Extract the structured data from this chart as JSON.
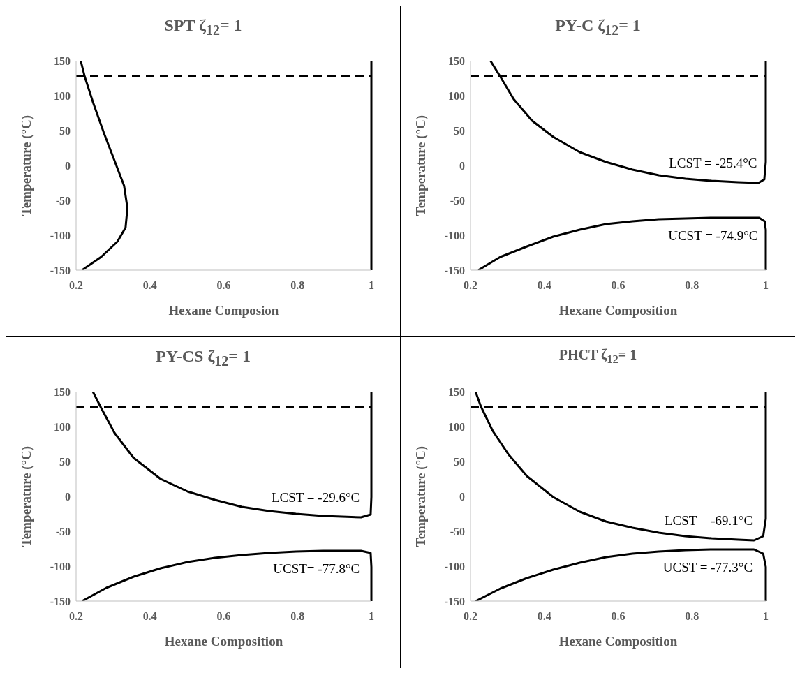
{
  "chart_data": [
    {
      "type": "line",
      "title": "SPT ζ$_{12}$= 1",
      "xlabel": "Hexane Composion",
      "ylabel": "Temperature (°C)",
      "xlim": [
        0.2,
        1
      ],
      "ylim": [
        -150,
        150
      ],
      "xticks": [
        0.2,
        0.4,
        0.6,
        0.8,
        1
      ],
      "yticks": [
        -150,
        -100,
        -50,
        0,
        50,
        100,
        150
      ],
      "series": [
        {
          "color": "#000000",
          "x": [
            0.2125,
            0.2235,
            0.2455,
            0.275,
            0.304,
            0.33,
            0.339,
            0.334,
            0.312,
            0.268,
            0.216
          ],
          "values": [
            150,
            127,
            91,
            47,
            7,
            -29,
            -61,
            -89,
            -109,
            -131,
            -150
          ]
        },
        {
          "color": "#000000",
          "x": [
            1,
            1,
            1,
            1,
            1
          ],
          "values": [
            -150,
            -100,
            0,
            100,
            150
          ]
        }
      ],
      "ref_lines": [
        {
          "axis": "y",
          "value": 128,
          "color": "#000000",
          "line_style": "dashed"
        }
      ]
    },
    {
      "type": "line",
      "title": "PY-C ζ$_{12}$= 1",
      "xlabel": "Hexane Composition",
      "ylabel": "Temperature (°C)",
      "xlim": [
        0.2,
        1
      ],
      "ylim": [
        -150,
        150
      ],
      "xticks": [
        0.2,
        0.4,
        0.6,
        0.8,
        1
      ],
      "yticks": [
        -150,
        -100,
        -50,
        0,
        50,
        100,
        150
      ],
      "series": [
        {
          "color": "#000000",
          "x": [
            0.254,
            0.281,
            0.317,
            0.367,
            0.424,
            0.496,
            0.567,
            0.639,
            0.71,
            0.782,
            0.853,
            0.925,
            0.98,
            0.996,
            1,
            1
          ],
          "values": [
            150,
            127,
            95,
            64,
            41,
            19,
            5,
            -6,
            -14,
            -19,
            -22,
            -24,
            -25,
            -20,
            5,
            150
          ]
        },
        {
          "color": "#000000",
          "x": [
            0.221,
            0.281,
            0.353,
            0.424,
            0.496,
            0.567,
            0.639,
            0.71,
            0.782,
            0.853,
            0.982,
            0.997,
            1,
            1
          ],
          "values": [
            -150,
            -131,
            -116,
            -102,
            -92,
            -84,
            -80,
            -77,
            -76,
            -75,
            -75,
            -80,
            -92,
            -150
          ]
        }
      ],
      "ref_lines": [
        {
          "axis": "y",
          "value": 128,
          "color": "#000000",
          "line_style": "dashed"
        }
      ],
      "annotations": [
        {
          "text": "LCST = -25.4°C",
          "x": 0.98,
          "y": -25
        },
        {
          "text": "UCST = -74.9°C",
          "x": 0.982,
          "y": -75
        }
      ]
    },
    {
      "type": "line",
      "title": "PY-CS ζ$_{12}$= 1",
      "xlabel": "Hexane Composition",
      "ylabel": "Temperature (°C)",
      "xlim": [
        0.2,
        1
      ],
      "ylim": [
        -150,
        150
      ],
      "xticks": [
        0.2,
        0.4,
        0.6,
        0.8,
        1
      ],
      "yticks": [
        -150,
        -100,
        -50,
        0,
        50,
        100,
        150
      ],
      "series": [
        {
          "color": "#000000",
          "x": [
            0.2455,
            0.2675,
            0.304,
            0.356,
            0.429,
            0.502,
            0.576,
            0.649,
            0.723,
            0.796,
            0.869,
            0.972,
            0.998,
            1,
            1
          ],
          "values": [
            150,
            127,
            91,
            55,
            25,
            7,
            -5,
            -15,
            -21,
            -25,
            -28,
            -30,
            -26,
            -1,
            150
          ]
        },
        {
          "color": "#000000",
          "x": [
            0.216,
            0.282,
            0.356,
            0.429,
            0.502,
            0.576,
            0.649,
            0.723,
            0.796,
            0.869,
            0.972,
            0.998,
            1,
            1
          ],
          "values": [
            -150,
            -131,
            -115,
            -103,
            -94,
            -88,
            -84,
            -81,
            -79,
            -78,
            -78,
            -81,
            -101,
            -150
          ]
        }
      ],
      "ref_lines": [
        {
          "axis": "y",
          "value": 128,
          "color": "#000000",
          "line_style": "dashed"
        }
      ],
      "annotations": [
        {
          "text": "LCST = -29.6°C",
          "x": 0.972,
          "y": -30
        },
        {
          "text": "UCST= -77.8°C",
          "x": 0.972,
          "y": -78
        }
      ]
    },
    {
      "type": "line",
      "title": "PHCT ζ$_{12}$= 1",
      "xlabel": "Hexane Composition",
      "ylabel": "Temperature (°C)",
      "xlim": [
        0.2,
        1
      ],
      "ylim": [
        -150,
        150
      ],
      "xticks": [
        0.2,
        0.4,
        0.6,
        0.8,
        1
      ],
      "yticks": [
        -150,
        -100,
        -50,
        0,
        50,
        100,
        150
      ],
      "series": [
        {
          "color": "#000000",
          "x": [
            0.2136,
            0.228,
            0.26,
            0.303,
            0.353,
            0.424,
            0.496,
            0.567,
            0.639,
            0.71,
            0.782,
            0.853,
            0.925,
            0.968,
            0.993,
            1,
            1
          ],
          "values": [
            150,
            129,
            94,
            60,
            29,
            -1,
            -22,
            -36,
            -45,
            -52,
            -57,
            -60,
            -62,
            -63,
            -57,
            -32,
            150
          ]
        },
        {
          "color": "#000000",
          "x": [
            0.214,
            0.281,
            0.353,
            0.424,
            0.496,
            0.567,
            0.639,
            0.71,
            0.782,
            0.853,
            0.968,
            0.993,
            1,
            1
          ],
          "values": [
            -150,
            -132,
            -117,
            -105,
            -95,
            -87,
            -82,
            -79,
            -77,
            -76,
            -76,
            -82,
            -101,
            -150
          ]
        }
      ],
      "ref_lines": [
        {
          "axis": "y",
          "value": 128,
          "color": "#000000",
          "line_style": "dashed"
        }
      ],
      "annotations": [
        {
          "text": "LCST = -69.1°C",
          "x": 0.968,
          "y": -63
        },
        {
          "text": "UCST = -77.3°C",
          "x": 0.968,
          "y": -76
        }
      ]
    }
  ]
}
